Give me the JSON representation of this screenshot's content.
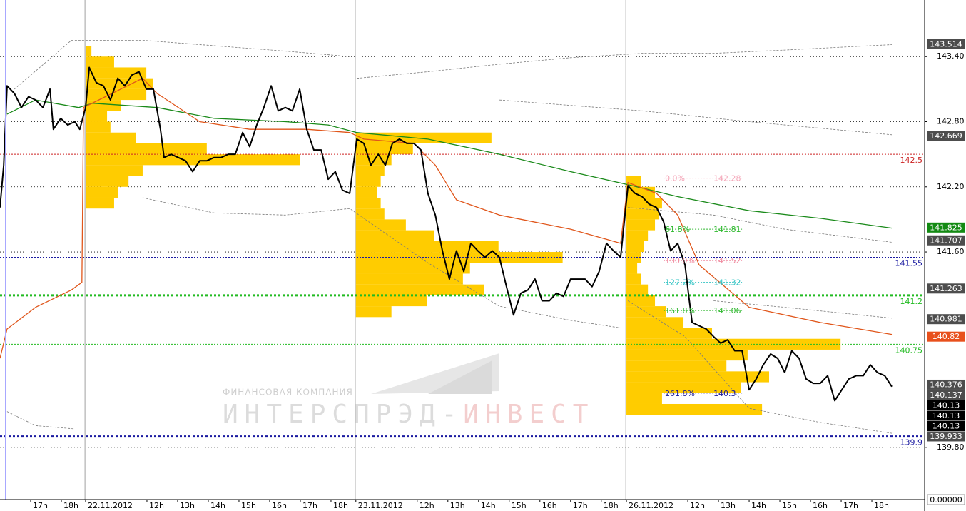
{
  "chart_data": {
    "type": "line",
    "xlim": [
      0,
      30.14
    ],
    "ylim": [
      139.319,
      143.921
    ],
    "grid": true,
    "xticks": [
      {
        "value": 1.0,
        "label": "17h"
      },
      {
        "value": 2.0,
        "label": "18h"
      },
      {
        "value": 2.79,
        "label": "22.11.2012"
      },
      {
        "value": 4.79,
        "label": "12h"
      },
      {
        "value": 5.79,
        "label": "13h"
      },
      {
        "value": 6.79,
        "label": "14h"
      },
      {
        "value": 7.79,
        "label": "15h"
      },
      {
        "value": 8.79,
        "label": "16h"
      },
      {
        "value": 9.79,
        "label": "17h"
      },
      {
        "value": 10.79,
        "label": "18h"
      },
      {
        "value": 11.6,
        "label": "23.11.2012"
      },
      {
        "value": 13.6,
        "label": "12h"
      },
      {
        "value": 14.6,
        "label": "13h"
      },
      {
        "value": 15.6,
        "label": "14h"
      },
      {
        "value": 16.6,
        "label": "15h"
      },
      {
        "value": 17.6,
        "label": "16h"
      },
      {
        "value": 18.6,
        "label": "17h"
      },
      {
        "value": 19.6,
        "label": "18h"
      },
      {
        "value": 20.42,
        "label": "26.11.2012"
      },
      {
        "value": 22.42,
        "label": "12h"
      },
      {
        "value": 23.42,
        "label": "13h"
      },
      {
        "value": 24.42,
        "label": "14h"
      },
      {
        "value": 25.42,
        "label": "15h"
      },
      {
        "value": 26.42,
        "label": "16h"
      },
      {
        "value": 27.42,
        "label": "17h"
      },
      {
        "value": 28.42,
        "label": "18h"
      }
    ],
    "separators": [
      2.77,
      11.58,
      20.4
    ],
    "yticks": [
      {
        "value": 143.4,
        "label": "143.40"
      },
      {
        "value": 142.8,
        "label": "142.80"
      },
      {
        "value": 142.2,
        "label": "142.20"
      },
      {
        "value": 141.6,
        "label": "141.60"
      },
      {
        "value": 139.8,
        "label": "139.80"
      }
    ],
    "series": [
      {
        "color": "#7a7a7a",
        "width": 0.8,
        "dash": true,
        "x": [
          11.63,
          13.95,
          16.28,
          18.6,
          20.93,
          23.26,
          25.58,
          29.07
        ],
        "values": [
          143.2,
          143.26,
          143.33,
          143.39,
          143.43,
          143.43,
          143.46,
          143.51
        ]
      },
      {
        "color": "#7a7a7a",
        "width": 0.8,
        "dash": true,
        "x": [
          16.28,
          20.93,
          24.42,
          29.07
        ],
        "values": [
          143.0,
          142.9,
          142.8,
          142.68
        ]
      },
      {
        "color": "#7a7a7a",
        "width": 0.8,
        "dash": true,
        "x": [
          20.47,
          23.26,
          25.58,
          29.07
        ],
        "values": [
          142.01,
          141.94,
          141.81,
          141.69
        ]
      },
      {
        "color": "#7a7a7a",
        "width": 0.8,
        "dash": true,
        "x": [
          23.26,
          25.58,
          29.07
        ],
        "values": [
          141.15,
          141.09,
          140.99
        ]
      },
      {
        "color": "#7a7a7a",
        "width": 0.8,
        "dash": true,
        "x": [
          20.47,
          22.33,
          24.42,
          26.74,
          29.07
        ],
        "values": [
          141.15,
          140.82,
          140.16,
          140.03,
          139.93
        ]
      },
      {
        "color": "#7a7a7a",
        "width": 0.8,
        "dash": true,
        "x": [
          0.47,
          2.33,
          4.65,
          6.98,
          9.3,
          11.4
        ],
        "values": [
          143.1,
          143.55,
          143.55,
          143.5,
          143.45,
          143.4
        ]
      },
      {
        "color": "#7a7a7a",
        "width": 0.8,
        "dash": true,
        "x": [
          4.65,
          6.98,
          9.3,
          11.4,
          13.95,
          16.28,
          18.6,
          20.23
        ],
        "values": [
          142.1,
          141.96,
          141.94,
          142.0,
          141.5,
          141.1,
          140.97,
          140.9
        ]
      },
      {
        "color": "#7a7a7a",
        "width": 0.8,
        "dash": true,
        "x": [
          0.23,
          1.16,
          2.44
        ],
        "values": [
          140.13,
          140.0,
          139.97
        ]
      },
      {
        "color": "#1a8a1a",
        "width": 1.3,
        "dash": false,
        "x": [
          0.23,
          1.16,
          2.56,
          3.02,
          5.12,
          6.98,
          9.3,
          10.7,
          11.63,
          13.95,
          16.28,
          18.6,
          20.47,
          22.09,
          24.42,
          26.74,
          29.07
        ],
        "values": [
          142.87,
          143.0,
          142.93,
          142.97,
          142.93,
          142.83,
          142.8,
          142.77,
          142.7,
          142.64,
          142.5,
          142.34,
          142.22,
          142.11,
          141.98,
          141.91,
          141.82
        ]
      },
      {
        "color": "#e0561b",
        "width": 1.3,
        "dash": false,
        "x": [
          0,
          0.23,
          1.16,
          2.33,
          2.67,
          2.72,
          4.65,
          5.12,
          6.51,
          8.14,
          10.0,
          11.4,
          11.86,
          13.49,
          14.19,
          14.88,
          16.28,
          18.6,
          20.23,
          20.47,
          21.4,
          22.09,
          22.79,
          24.42,
          26.74,
          29.07
        ],
        "values": [
          140.62,
          140.89,
          141.09,
          141.25,
          141.32,
          142.93,
          143.2,
          143.06,
          142.8,
          142.73,
          142.73,
          142.7,
          142.64,
          142.6,
          142.4,
          142.08,
          141.94,
          141.81,
          141.68,
          142.24,
          142.14,
          141.94,
          141.48,
          141.09,
          140.95,
          140.84
        ]
      },
      {
        "color": "#000000",
        "width": 2,
        "dash": false,
        "x": [
          0,
          0.12,
          0.23,
          0.47,
          0.7,
          0.93,
          1.16,
          1.4,
          1.63,
          1.74,
          1.98,
          2.21,
          2.44,
          2.6,
          2.79,
          2.91,
          3.14,
          3.37,
          3.6,
          3.84,
          4.07,
          4.3,
          4.53,
          4.77,
          5.0,
          5.23,
          5.35,
          5.58,
          5.81,
          6.05,
          6.28,
          6.51,
          6.74,
          6.98,
          7.21,
          7.44,
          7.67,
          7.91,
          8.14,
          8.37,
          8.6,
          8.84,
          9.07,
          9.3,
          9.53,
          9.77,
          10.0,
          10.23,
          10.47,
          10.7,
          10.93,
          11.16,
          11.4,
          11.63,
          11.86,
          12.09,
          12.33,
          12.56,
          12.79,
          13.02,
          13.26,
          13.49,
          13.72,
          13.95,
          14.19,
          14.42,
          14.65,
          14.88,
          15.12,
          15.35,
          15.58,
          15.81,
          16.05,
          16.28,
          16.51,
          16.74,
          16.98,
          17.21,
          17.44,
          17.67,
          17.91,
          18.14,
          18.37,
          18.6,
          18.84,
          19.07,
          19.3,
          19.53,
          19.77,
          20.0,
          20.23,
          20.47,
          20.7,
          20.93,
          21.16,
          21.4,
          21.63,
          21.86,
          22.09,
          22.33,
          22.44,
          22.56,
          22.79,
          23.02,
          23.26,
          23.49,
          23.72,
          23.95,
          24.19,
          24.42,
          24.65,
          24.88,
          25.12,
          25.35,
          25.58,
          25.81,
          26.05,
          26.28,
          26.51,
          26.74,
          26.98,
          27.21,
          27.44,
          27.67,
          27.91,
          28.14,
          28.37,
          28.6,
          28.84,
          29.07
        ],
        "values": [
          142.01,
          142.4,
          143.13,
          143.06,
          142.93,
          143.03,
          143.0,
          142.93,
          143.1,
          142.73,
          142.83,
          142.77,
          142.8,
          142.73,
          142.93,
          143.3,
          143.16,
          143.13,
          143.0,
          143.2,
          143.13,
          143.23,
          143.26,
          143.1,
          143.1,
          142.73,
          142.47,
          142.5,
          142.47,
          142.44,
          142.34,
          142.44,
          142.44,
          142.47,
          142.47,
          142.5,
          142.5,
          142.7,
          142.57,
          142.77,
          142.93,
          143.13,
          142.9,
          142.93,
          142.9,
          143.1,
          142.73,
          142.54,
          142.54,
          142.27,
          142.34,
          142.17,
          142.14,
          142.64,
          142.6,
          142.4,
          142.5,
          142.4,
          142.6,
          142.64,
          142.6,
          142.6,
          142.54,
          142.14,
          141.94,
          141.61,
          141.35,
          141.61,
          141.42,
          141.68,
          141.61,
          141.55,
          141.61,
          141.55,
          141.28,
          141.02,
          141.22,
          141.25,
          141.35,
          141.15,
          141.15,
          141.22,
          141.19,
          141.35,
          141.35,
          141.35,
          141.28,
          141.42,
          141.68,
          141.61,
          141.55,
          142.21,
          142.14,
          142.11,
          142.04,
          142.01,
          141.88,
          141.61,
          141.68,
          141.48,
          141.22,
          140.95,
          140.92,
          140.89,
          140.82,
          140.76,
          140.79,
          140.69,
          140.69,
          140.33,
          140.43,
          140.56,
          140.66,
          140.62,
          140.49,
          140.69,
          140.62,
          140.43,
          140.39,
          140.39,
          140.46,
          140.23,
          140.33,
          140.43,
          140.46,
          140.46,
          140.56,
          140.49,
          140.46,
          140.36
        ]
      }
    ],
    "profile_color": "#ffcc00",
    "volume_profiles": [
      {
        "x": 2.79,
        "bins": [
          143.5,
          143.4,
          143.3,
          143.2,
          143.1,
          143.0,
          142.9,
          142.8,
          142.7,
          142.6,
          142.5,
          142.4,
          142.3,
          142.2,
          142.1,
          142.0
        ],
        "volumes": [
          0.19,
          0.93,
          1.98,
          2.21,
          1.98,
          1.16,
          0.7,
          0.81,
          1.63,
          3.95,
          6.98,
          1.86,
          1.4,
          1.05,
          0.93
        ]
      },
      {
        "x": 11.6,
        "bins": [
          142.7,
          142.6,
          142.5,
          142.4,
          142.3,
          142.2,
          142.1,
          142.0,
          141.9,
          141.8,
          141.7,
          141.6,
          141.5,
          141.4,
          141.3,
          141.2,
          141.1,
          141.0
        ],
        "volumes": [
          4.42,
          1.86,
          1.16,
          0.93,
          0.81,
          0.7,
          0.81,
          0.93,
          1.63,
          2.56,
          4.65,
          6.74,
          3.72,
          3.49,
          4.19,
          2.33,
          1.16
        ]
      },
      {
        "x": 20.42,
        "bins": [
          142.3,
          142.2,
          142.1,
          142.0,
          141.9,
          141.8,
          141.7,
          141.6,
          141.5,
          141.4,
          141.3,
          141.2,
          141.1,
          141.0,
          140.9,
          140.8,
          140.7,
          140.6,
          140.5,
          140.4,
          140.3,
          140.2,
          140.1
        ],
        "volumes": [
          0.47,
          0.93,
          1.16,
          1.05,
          0.93,
          0.7,
          0.58,
          0.47,
          0.35,
          0.47,
          0.7,
          0.93,
          1.28,
          1.86,
          2.79,
          6.98,
          3.95,
          3.26,
          4.65,
          3.72,
          1.16,
          4.42
        ]
      }
    ],
    "levels": [
      {
        "value": 142.5,
        "color": "#cc2222",
        "width": 1
      },
      {
        "value": 141.55,
        "color": "#1a1aa0",
        "width": 1.2
      },
      {
        "value": 141.2,
        "color": "#22bb22",
        "width": 3
      },
      {
        "value": 140.75,
        "color": "#22bb22",
        "width": 1
      },
      {
        "value": 139.9,
        "color": "#1a1aa0",
        "width": 3
      }
    ],
    "fib": {
      "x": [
        21.63,
        24.19
      ],
      "levels": [
        {
          "label": "0.0%",
          "value": 142.28,
          "color": "#f4a6b8"
        },
        {
          "label": "61.8%",
          "value": 141.81,
          "color": "#2eb82e"
        },
        {
          "label": "100.0%",
          "value": 141.52,
          "color": "#f08ca0"
        },
        {
          "label": "127.2%",
          "value": 141.32,
          "color": "#33c4c4"
        },
        {
          "label": "161.8%",
          "value": 141.06,
          "color": "#2eb82e"
        },
        {
          "label": "261.8%",
          "value": 140.3,
          "color": "#1a1a99"
        }
      ]
    },
    "price_tags": [
      {
        "value": 143.514,
        "color": "#4d4d4d"
      },
      {
        "value": 142.669,
        "color": "#4d4d4d"
      },
      {
        "value": 141.825,
        "color": "#138a13"
      },
      {
        "value": 141.707,
        "color": "#4d4d4d"
      },
      {
        "value": 141.263,
        "color": "#4d4d4d"
      },
      {
        "value": 140.981,
        "color": "#4d4d4d"
      },
      {
        "value": 140.82,
        "color": "#e8501c"
      },
      {
        "value": 140.376,
        "color": "#4d4d4d"
      },
      {
        "value": 140.137,
        "color": "#4d4d4d"
      },
      {
        "value": 140.13,
        "color": "#000000"
      },
      {
        "value": 140.13,
        "color": "#000000"
      },
      {
        "value": 140.13,
        "color": "#000000"
      },
      {
        "value": 139.933,
        "color": "#4d4d4d"
      }
    ],
    "bottom_tag": {
      "value": 0,
      "label": "0.00000"
    },
    "watermark": {
      "company": "ФИНАНСОВАЯ КОМПАНИЯ",
      "name": "ИНТЕРСПРЭД-",
      "name_accent": "ИНВЕСТ"
    }
  }
}
